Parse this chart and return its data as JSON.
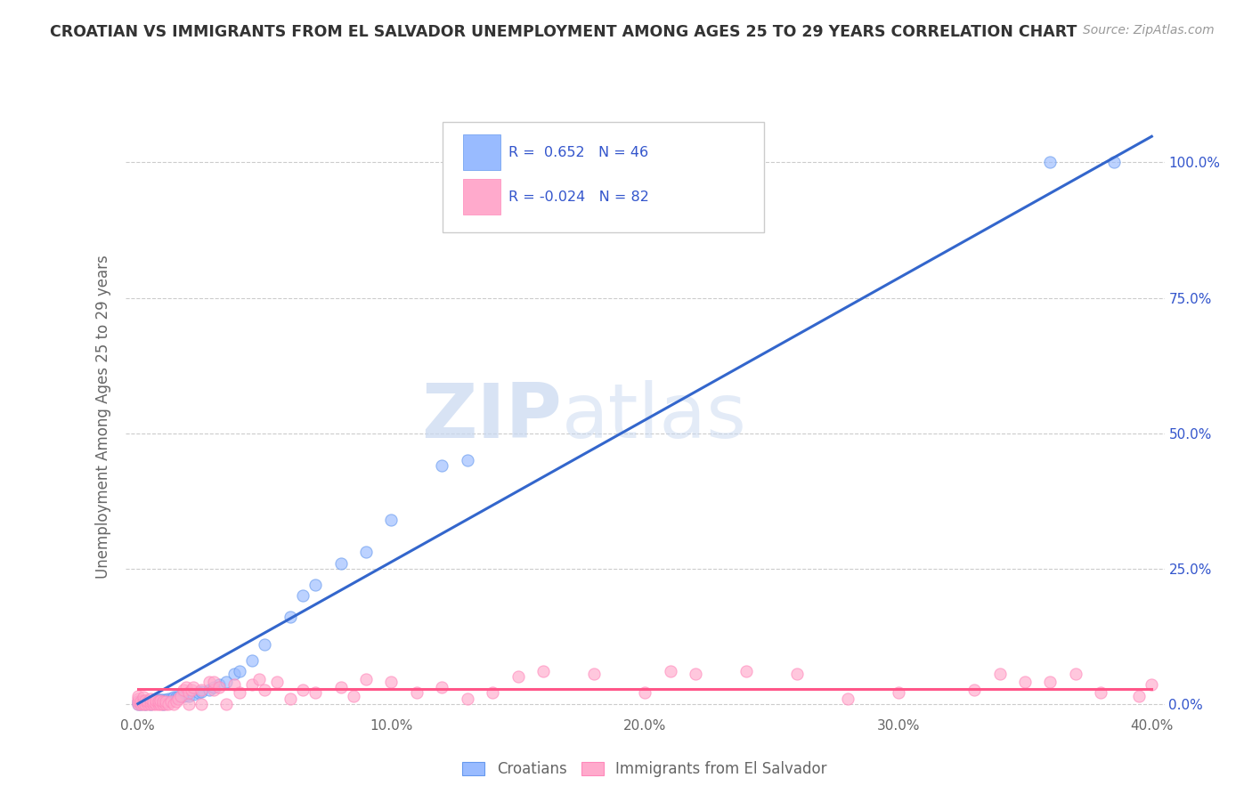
{
  "title": "CROATIAN VS IMMIGRANTS FROM EL SALVADOR UNEMPLOYMENT AMONG AGES 25 TO 29 YEARS CORRELATION CHART",
  "source": "Source: ZipAtlas.com",
  "ylabel": "Unemployment Among Ages 25 to 29 years",
  "xlim": [
    0.0,
    0.4
  ],
  "ylim": [
    -0.02,
    1.08
  ],
  "croatian_R": 0.652,
  "croatian_N": 46,
  "elsalvador_R": -0.024,
  "elsalvador_N": 82,
  "croatian_color": "#99bbff",
  "elsalvador_color": "#ffaacc",
  "croatian_edge_color": "#6699ee",
  "elsalvador_edge_color": "#ff88bb",
  "croatian_line_color": "#3366cc",
  "elsalvador_line_color": "#ff5588",
  "watermark_color": "#ddeeff",
  "background_color": "#ffffff",
  "grid_color": "#cccccc",
  "legend_text_color": "#3355cc",
  "title_color": "#333333",
  "tick_color": "#666666",
  "right_tick_color": "#3355cc",
  "cr_line_slope": 2.62,
  "cr_line_intercept": 0.0,
  "es_line_slope": 0.0,
  "es_line_intercept": 0.028,
  "croatian_x": [
    0.0,
    0.0,
    0.001,
    0.001,
    0.002,
    0.003,
    0.003,
    0.004,
    0.005,
    0.005,
    0.006,
    0.007,
    0.008,
    0.009,
    0.01,
    0.01,
    0.011,
    0.012,
    0.013,
    0.014,
    0.015,
    0.016,
    0.018,
    0.019,
    0.02,
    0.022,
    0.024,
    0.025,
    0.028,
    0.03,
    0.032,
    0.035,
    0.038,
    0.04,
    0.045,
    0.05,
    0.06,
    0.065,
    0.07,
    0.08,
    0.09,
    0.1,
    0.12,
    0.13,
    0.36,
    0.385
  ],
  "croatian_y": [
    0.0,
    0.005,
    0.0,
    0.003,
    0.003,
    0.0,
    0.003,
    0.004,
    0.0,
    0.005,
    0.003,
    0.005,
    0.007,
    0.008,
    0.0,
    0.007,
    0.008,
    0.01,
    0.01,
    0.012,
    0.012,
    0.013,
    0.015,
    0.016,
    0.015,
    0.018,
    0.02,
    0.022,
    0.025,
    0.03,
    0.035,
    0.04,
    0.055,
    0.06,
    0.08,
    0.11,
    0.16,
    0.2,
    0.22,
    0.26,
    0.28,
    0.34,
    0.44,
    0.45,
    1.0,
    1.0
  ],
  "elsalvador_x": [
    0.0,
    0.0,
    0.0,
    0.0,
    0.001,
    0.001,
    0.002,
    0.002,
    0.002,
    0.003,
    0.003,
    0.004,
    0.004,
    0.005,
    0.005,
    0.005,
    0.006,
    0.006,
    0.007,
    0.007,
    0.008,
    0.008,
    0.009,
    0.009,
    0.01,
    0.01,
    0.011,
    0.011,
    0.012,
    0.013,
    0.014,
    0.015,
    0.016,
    0.017,
    0.018,
    0.019,
    0.02,
    0.02,
    0.021,
    0.022,
    0.025,
    0.025,
    0.028,
    0.03,
    0.03,
    0.032,
    0.035,
    0.038,
    0.04,
    0.045,
    0.048,
    0.05,
    0.055,
    0.06,
    0.065,
    0.07,
    0.08,
    0.085,
    0.09,
    0.1,
    0.11,
    0.12,
    0.13,
    0.14,
    0.15,
    0.16,
    0.18,
    0.2,
    0.21,
    0.22,
    0.24,
    0.26,
    0.28,
    0.3,
    0.33,
    0.34,
    0.35,
    0.36,
    0.37,
    0.38,
    0.395,
    0.4
  ],
  "elsalvador_y": [
    0.0,
    0.005,
    0.01,
    0.015,
    0.0,
    0.005,
    0.0,
    0.006,
    0.012,
    0.0,
    0.006,
    0.0,
    0.005,
    0.0,
    0.005,
    0.01,
    0.0,
    0.005,
    0.0,
    0.006,
    0.0,
    0.005,
    0.0,
    0.006,
    0.0,
    0.005,
    0.0,
    0.005,
    0.0,
    0.005,
    0.0,
    0.005,
    0.01,
    0.015,
    0.025,
    0.03,
    0.0,
    0.02,
    0.025,
    0.03,
    0.0,
    0.025,
    0.04,
    0.025,
    0.04,
    0.03,
    0.0,
    0.035,
    0.02,
    0.035,
    0.045,
    0.025,
    0.04,
    0.01,
    0.025,
    0.02,
    0.03,
    0.015,
    0.045,
    0.04,
    0.02,
    0.03,
    0.01,
    0.02,
    0.05,
    0.06,
    0.055,
    0.02,
    0.06,
    0.055,
    0.06,
    0.055,
    0.01,
    0.02,
    0.025,
    0.055,
    0.04,
    0.04,
    0.055,
    0.02,
    0.015,
    0.035
  ]
}
